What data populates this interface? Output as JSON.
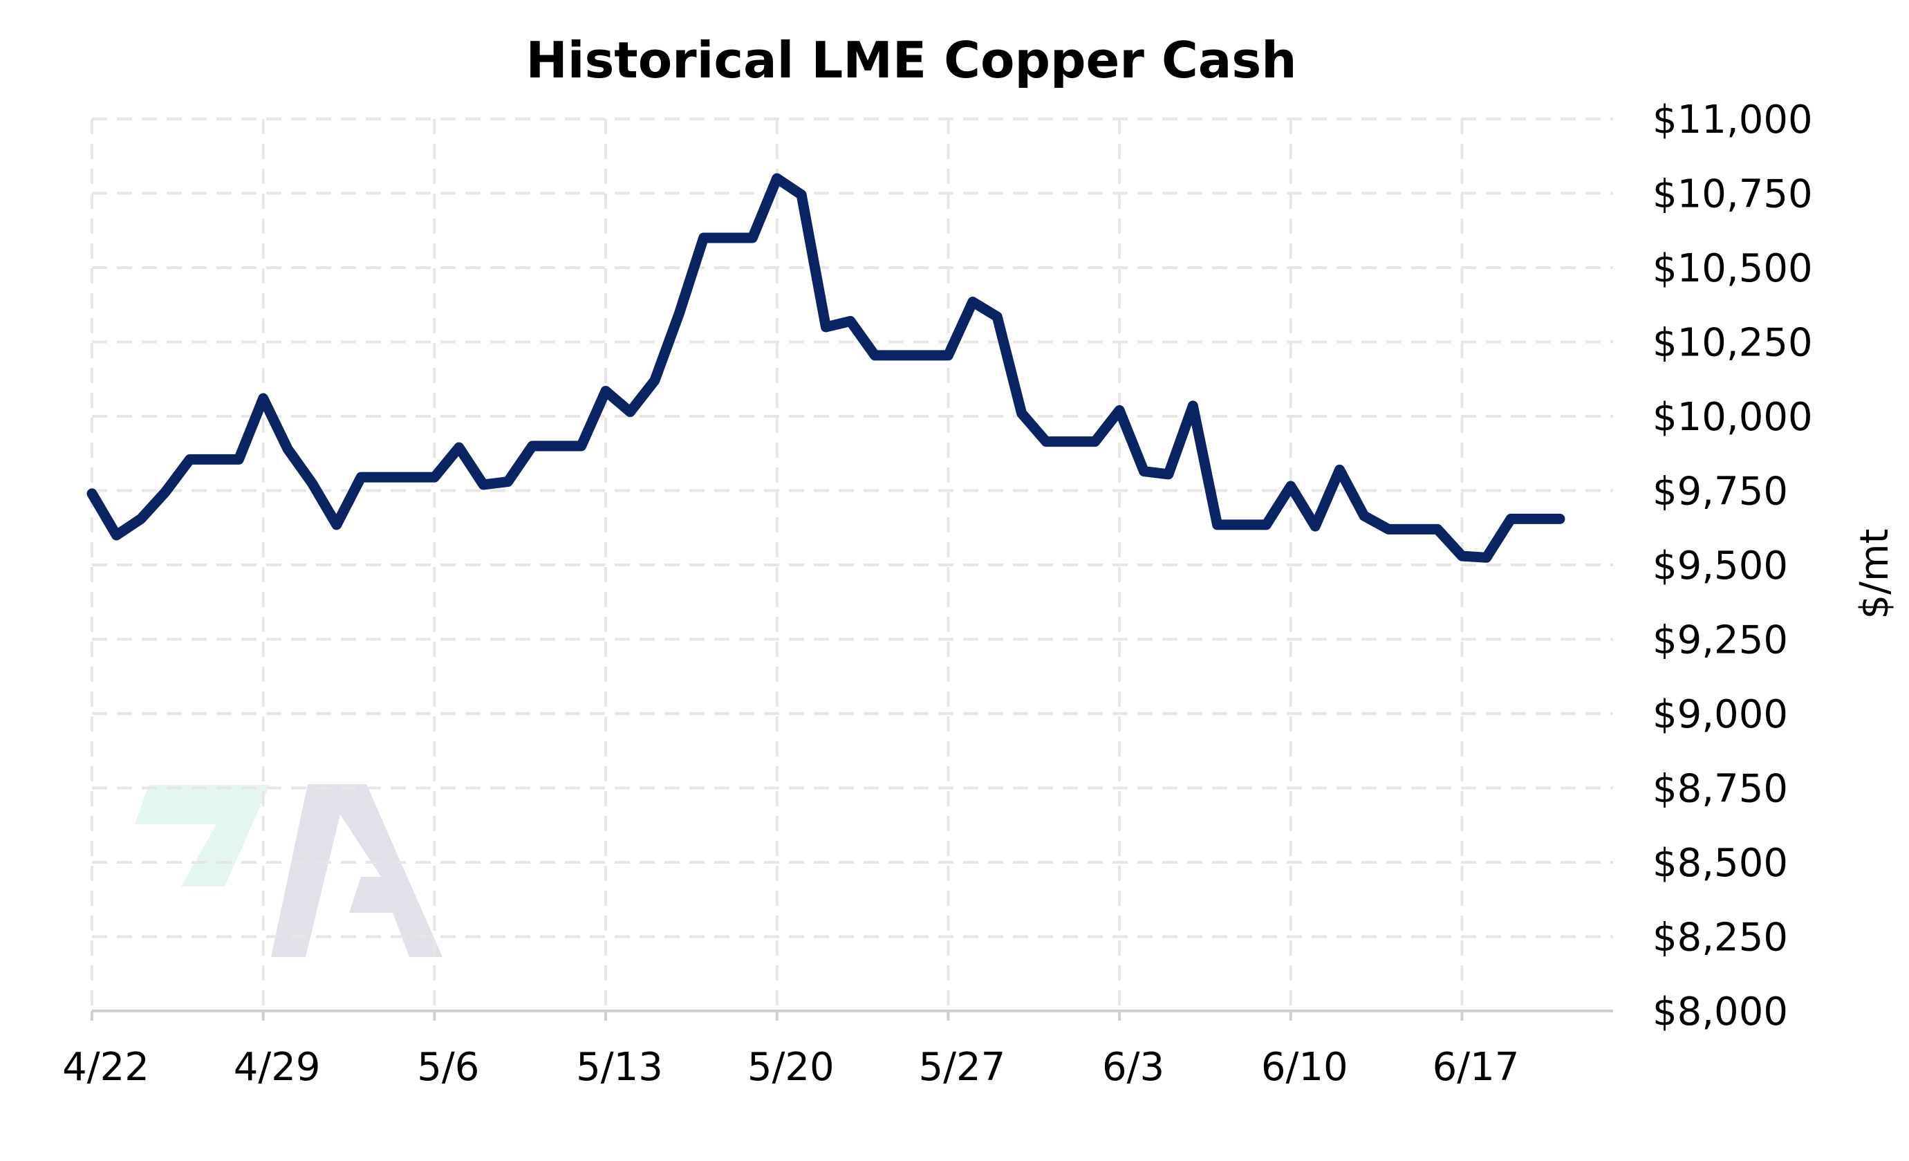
{
  "chart_data": {
    "type": "line",
    "title": "Historical LME Copper Cash",
    "xlabel": "",
    "ylabel": "$/mt",
    "ylim": [
      8000,
      11000
    ],
    "y_ticks": [
      8000,
      8250,
      8500,
      8750,
      9000,
      9250,
      9500,
      9750,
      10000,
      10250,
      10500,
      10750,
      11000
    ],
    "y_tick_labels": [
      "$8,000",
      "$8,250",
      "$8,500",
      "$8,750",
      "$9,000",
      "$9,250",
      "$9,500",
      "$9,750",
      "$10,000",
      "$10,250",
      "$10,500",
      "$10,750",
      "$11,000"
    ],
    "x_ticks": [
      "4/22",
      "4/29",
      "5/6",
      "5/13",
      "5/20",
      "5/27",
      "6/3",
      "6/10",
      "6/17"
    ],
    "xlim": [
      "2024-04-22",
      "2024-06-21"
    ],
    "grid": true,
    "line_color": "#0a2362",
    "watermark_colors": [
      "#e3f7ef",
      "#dfe3e9"
    ],
    "series": [
      {
        "x": [
          "2024-04-22",
          "2024-04-23",
          "2024-04-24",
          "2024-04-25",
          "2024-04-26",
          "2024-04-27",
          "2024-04-28",
          "2024-04-29",
          "2024-04-30",
          "2024-05-01",
          "2024-05-02",
          "2024-05-03",
          "2024-05-04",
          "2024-05-05",
          "2024-05-06",
          "2024-05-07",
          "2024-05-08",
          "2024-05-09",
          "2024-05-10",
          "2024-05-11",
          "2024-05-12",
          "2024-05-13",
          "2024-05-14",
          "2024-05-15",
          "2024-05-16",
          "2024-05-17",
          "2024-05-18",
          "2024-05-19",
          "2024-05-20",
          "2024-05-21",
          "2024-05-22",
          "2024-05-23",
          "2024-05-24",
          "2024-05-25",
          "2024-05-26",
          "2024-05-27",
          "2024-05-28",
          "2024-05-29",
          "2024-05-30",
          "2024-05-31",
          "2024-06-01",
          "2024-06-02",
          "2024-06-03",
          "2024-06-04",
          "2024-06-05",
          "2024-06-06",
          "2024-06-07",
          "2024-06-08",
          "2024-06-09",
          "2024-06-10",
          "2024-06-11",
          "2024-06-12",
          "2024-06-13",
          "2024-06-14",
          "2024-06-15",
          "2024-06-16",
          "2024-06-17",
          "2024-06-18",
          "2024-06-19",
          "2024-06-20",
          "2024-06-21"
        ],
        "values": [
          9740,
          9600,
          9655,
          9745,
          9855,
          9855,
          9855,
          10060,
          9890,
          9775,
          9635,
          9795,
          9795,
          9795,
          9795,
          9895,
          9770,
          9780,
          9900,
          9900,
          9900,
          10085,
          10015,
          10120,
          10345,
          10600,
          10600,
          10600,
          10800,
          10745,
          10300,
          10320,
          10205,
          10205,
          10205,
          10205,
          10385,
          10335,
          10010,
          9915,
          9915,
          9915,
          10020,
          9815,
          9805,
          10035,
          9635,
          9635,
          9635,
          9765,
          9630,
          9820,
          9665,
          9620,
          9620,
          9620,
          9530,
          9525,
          9655,
          9655,
          9655
        ]
      }
    ]
  }
}
